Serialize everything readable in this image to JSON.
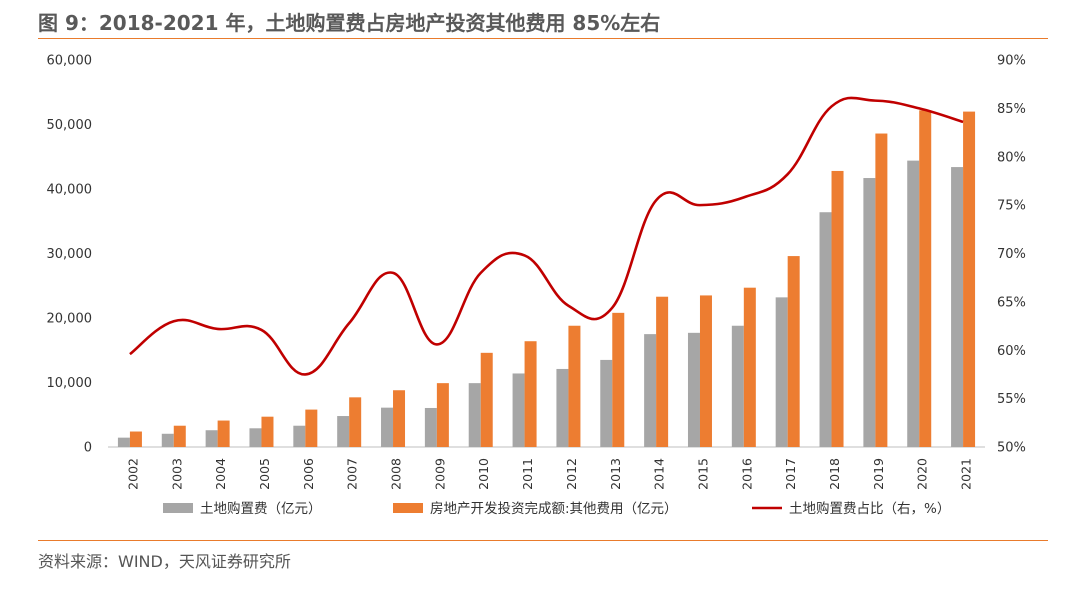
{
  "header": {
    "title": "图 9：2018-2021 年，土地购置费占房地产投资其他费用 85%左右"
  },
  "footer": {
    "source": "资料来源：WIND，天风证券研究所"
  },
  "colors": {
    "gray": "#a6a6a6",
    "orange": "#ed7d31",
    "red": "#c00000",
    "accent": "#e97b2c"
  },
  "chart_data": {
    "type": "bar",
    "title": "图 9：2018-2021 年，土地购置费占房地产投资其他费用 85%左右",
    "categories": [
      "2002",
      "2003",
      "2004",
      "2005",
      "2006",
      "2007",
      "2008",
      "2009",
      "2010",
      "2011",
      "2012",
      "2013",
      "2014",
      "2015",
      "2016",
      "2017",
      "2018",
      "2019",
      "2020",
      "2021"
    ],
    "y_left": {
      "range": [
        0,
        60000
      ],
      "ticks": [
        "0",
        "10,000",
        "20,000",
        "30,000",
        "40,000",
        "50,000",
        "60,000"
      ]
    },
    "y_right": {
      "range": [
        50,
        90
      ],
      "ticks": [
        "50%",
        "55%",
        "60%",
        "65%",
        "70%",
        "75%",
        "80%",
        "85%",
        "90%"
      ]
    },
    "series": [
      {
        "name": "土地购置费（亿元）",
        "type": "bar",
        "axis": "left",
        "values": [
          1450,
          2050,
          2600,
          2900,
          3300,
          4800,
          6100,
          6050,
          9900,
          11400,
          12100,
          13500,
          17500,
          17700,
          18800,
          23200,
          36400,
          41700,
          44400,
          43400
        ]
      },
      {
        "name": "房地产开发投资完成额:其他费用（亿元）",
        "type": "bar",
        "axis": "left",
        "values": [
          2400,
          3300,
          4100,
          4700,
          5800,
          7700,
          8800,
          9900,
          14600,
          16400,
          18800,
          20800,
          23300,
          23500,
          24700,
          29600,
          42800,
          48600,
          52200,
          52000
        ]
      },
      {
        "name": "土地购置费占比（右，%）",
        "type": "line",
        "axis": "right",
        "values": [
          59.6,
          63.0,
          62.2,
          62.1,
          57.5,
          62.8,
          68.0,
          60.6,
          68.0,
          69.8,
          64.6,
          64.4,
          75.5,
          75.0,
          75.8,
          78.2,
          85.2,
          85.8,
          85.0,
          83.6
        ]
      }
    ]
  }
}
